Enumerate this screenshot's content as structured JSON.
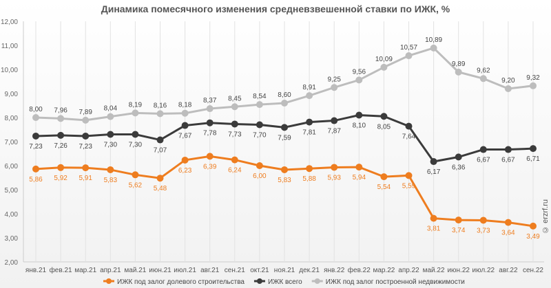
{
  "chart_data": {
    "type": "line",
    "title": "Динамика помесячного изменения средневзвешенной ставки по ИЖК, %",
    "categories": [
      "янв.21",
      "фев.21",
      "мар.21",
      "апр.21",
      "май.21",
      "июн.21",
      "июл.21",
      "авг.21",
      "сен.21",
      "окт.21",
      "ноя.21",
      "дек.21",
      "янв.22",
      "фев.22",
      "мар.22",
      "апр.22",
      "май.22",
      "июн.22",
      "июл.22",
      "авг.22",
      "сен.22"
    ],
    "ylim": [
      2,
      12
    ],
    "yticks": [
      "2,00",
      "3,00",
      "4,00",
      "5,00",
      "6,00",
      "7,00",
      "8,00",
      "9,00",
      "10,00",
      "11,00",
      "12,00"
    ],
    "grid": "vertical",
    "legend": "bottom",
    "series": [
      {
        "name": "ИЖК под залог долевого строительства",
        "color": "#ee7d1f",
        "values": [
          5.86,
          5.92,
          5.91,
          5.83,
          5.62,
          5.48,
          6.23,
          6.39,
          6.24,
          6.0,
          5.83,
          5.88,
          5.93,
          5.94,
          5.54,
          5.59,
          3.81,
          3.74,
          3.73,
          3.64,
          3.49
        ]
      },
      {
        "name": "ИЖК всего",
        "color": "#3b3b3b",
        "values": [
          7.23,
          7.26,
          7.23,
          7.3,
          7.3,
          7.07,
          7.67,
          7.78,
          7.73,
          7.7,
          7.59,
          7.81,
          7.87,
          8.1,
          8.05,
          7.64,
          6.17,
          6.36,
          6.67,
          6.67,
          6.71
        ]
      },
      {
        "name": "ИЖК под залог построенной недвижимости",
        "color": "#bdbdbd",
        "values": [
          8.0,
          7.96,
          7.89,
          8.04,
          8.19,
          8.16,
          8.18,
          8.37,
          8.45,
          8.54,
          8.6,
          8.91,
          9.25,
          9.56,
          10.09,
          10.57,
          10.89,
          9.89,
          9.62,
          9.2,
          9.32
        ]
      }
    ]
  },
  "watermark": "© erzrf.ru"
}
